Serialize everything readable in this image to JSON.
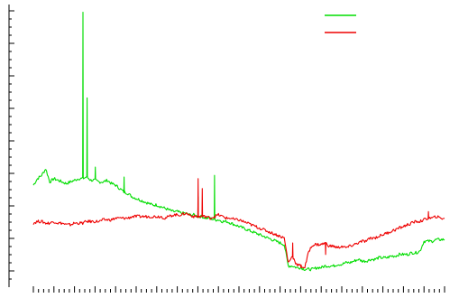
{
  "chart_data": {
    "type": "line",
    "title": "",
    "xlabel": "",
    "ylabel": "",
    "grid": false,
    "legend_position": "top-right",
    "xlim": [
      0,
      100
    ],
    "ylim": [
      0,
      16
    ],
    "series": [
      {
        "color": "#00dd00",
        "x": [
          0,
          1,
          2,
          3,
          4,
          5,
          6,
          7,
          8,
          9,
          10,
          11,
          12,
          13,
          14,
          15,
          16,
          17,
          18,
          19,
          20,
          21,
          22,
          23,
          24,
          25,
          26,
          27,
          28,
          29,
          30,
          31,
          32,
          33,
          34,
          35,
          36,
          37,
          38,
          39,
          40,
          41,
          42,
          43,
          44,
          45,
          46,
          47,
          48,
          49,
          50,
          51,
          52,
          53,
          54,
          55,
          56,
          57,
          58,
          59,
          60,
          61,
          62,
          63,
          64,
          65,
          66,
          67,
          68,
          69,
          70,
          71,
          72,
          73,
          74,
          75,
          76,
          77,
          78,
          79,
          80,
          81,
          82,
          83,
          84,
          85,
          86,
          87,
          88,
          89,
          90,
          91,
          92,
          93,
          94,
          95,
          96,
          97,
          98,
          99,
          100
        ],
        "values": [
          5.2,
          5.6,
          5.8,
          6.2,
          5.4,
          5.6,
          5.5,
          5.4,
          5.3,
          5.4,
          5.5,
          5.6,
          5.6,
          5.7,
          5.5,
          5.5,
          5.4,
          5.4,
          5.5,
          5.3,
          5.2,
          5.0,
          4.8,
          4.7,
          4.5,
          4.4,
          4.3,
          4.2,
          4.1,
          4.0,
          4.0,
          3.9,
          3.8,
          3.7,
          3.6,
          3.6,
          3.5,
          3.5,
          3.4,
          3.4,
          3.3,
          3.3,
          3.2,
          3.2,
          3.1,
          3.1,
          3.0,
          3.0,
          2.9,
          2.8,
          2.7,
          2.6,
          2.5,
          2.4,
          2.3,
          2.2,
          2.1,
          2.0,
          1.9,
          1.8,
          1.7,
          1.6,
          0.3,
          0.3,
          0.2,
          0.2,
          0.1,
          0.1,
          0.1,
          0.2,
          0.2,
          0.3,
          0.3,
          0.3,
          0.4,
          0.4,
          0.5,
          0.5,
          0.6,
          0.7,
          0.6,
          0.6,
          0.7,
          0.7,
          0.8,
          0.8,
          0.8,
          0.9,
          0.9,
          1.0,
          1.0,
          1.0,
          1.1,
          1.1,
          1.2,
          1.8,
          1.8,
          1.8,
          1.9,
          1.9,
          1.9
        ],
        "spikes": [
          [
            12,
            15.7
          ],
          [
            13,
            10.5
          ],
          [
            15,
            6.3
          ],
          [
            22,
            5.7
          ],
          [
            40,
            4.5
          ],
          [
            44,
            5.8
          ]
        ]
      },
      {
        "color": "#ee0000",
        "x": [
          0,
          1,
          2,
          3,
          4,
          5,
          6,
          7,
          8,
          9,
          10,
          11,
          12,
          13,
          14,
          15,
          16,
          17,
          18,
          19,
          20,
          21,
          22,
          23,
          24,
          25,
          26,
          27,
          28,
          29,
          30,
          31,
          32,
          33,
          34,
          35,
          36,
          37,
          38,
          39,
          40,
          41,
          42,
          43,
          44,
          45,
          46,
          47,
          48,
          49,
          50,
          51,
          52,
          53,
          54,
          55,
          56,
          57,
          58,
          59,
          60,
          61,
          62,
          63,
          64,
          65,
          66,
          67,
          68,
          69,
          70,
          71,
          72,
          73,
          74,
          75,
          76,
          77,
          78,
          79,
          80,
          81,
          82,
          83,
          84,
          85,
          86,
          87,
          88,
          89,
          90,
          91,
          92,
          93,
          94,
          95,
          96,
          97,
          98,
          99,
          100
        ],
        "values": [
          2.9,
          3.0,
          3.0,
          2.9,
          2.9,
          3.0,
          2.9,
          2.9,
          2.8,
          2.8,
          2.9,
          2.9,
          2.9,
          3.0,
          3.0,
          3.0,
          3.0,
          3.1,
          3.1,
          3.1,
          3.2,
          3.2,
          3.2,
          3.2,
          3.3,
          3.3,
          3.3,
          3.3,
          3.3,
          3.3,
          3.3,
          3.3,
          3.2,
          3.3,
          3.4,
          3.4,
          3.4,
          3.5,
          3.4,
          3.3,
          3.3,
          3.3,
          3.3,
          3.2,
          3.3,
          3.4,
          3.3,
          3.2,
          3.2,
          3.1,
          3.1,
          3.0,
          2.9,
          2.8,
          2.7,
          2.6,
          2.5,
          2.4,
          2.3,
          2.2,
          2.1,
          2.0,
          0.5,
          0.9,
          0.4,
          0.3,
          0.2,
          1.2,
          1.6,
          1.6,
          1.6,
          1.7,
          1.5,
          1.5,
          1.4,
          1.5,
          1.4,
          1.5,
          1.6,
          1.7,
          1.8,
          1.8,
          2.0,
          2.0,
          2.1,
          2.2,
          2.3,
          2.4,
          2.5,
          2.6,
          2.7,
          2.8,
          2.9,
          3.0,
          3.0,
          3.1,
          3.2,
          3.2,
          3.3,
          3.2,
          3.2
        ],
        "spikes": [
          [
            40,
            5.6
          ],
          [
            41,
            5.0
          ],
          [
            63,
            1.7
          ],
          [
            65,
            0.2
          ],
          [
            68,
            1.5
          ],
          [
            71,
            1.0
          ],
          [
            96,
            3.6
          ]
        ]
      }
    ]
  }
}
